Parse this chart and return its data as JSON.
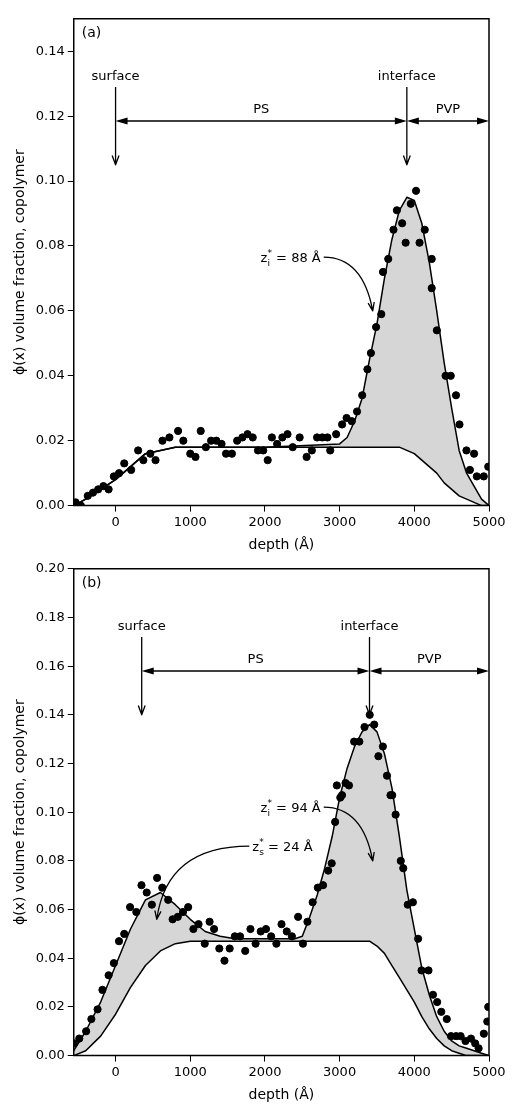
{
  "chart_data": [
    {
      "type": "scatter",
      "xlabel": "depth (Å)",
      "ylabel": "ϕ(x) volume fraction, copolymer",
      "xlim": [
        -560,
        5000
      ],
      "ylim": [
        0,
        0.15
      ],
      "xticks": [
        0,
        1000,
        2000,
        3000,
        4000,
        5000
      ],
      "yticks": [
        {
          "value": 0,
          "label": "0.00"
        },
        {
          "value": 0.02,
          "label": "0.02"
        },
        {
          "value": 0.04,
          "label": "0.04"
        },
        {
          "value": 0.06,
          "label": "0.06"
        },
        {
          "value": 0.08,
          "label": "0.08"
        },
        {
          "value": 0.1,
          "label": "0.10"
        },
        {
          "value": 0.12,
          "label": "0.12"
        },
        {
          "value": 0.14,
          "label": "0.14"
        }
      ],
      "annotations": [
        "(a)",
        "PS",
        "PVP",
        "z$_{i}$$^{*}$ = 88 Å"
      ],
      "ref_lines": [
        {
          "axis": "x",
          "value": 0,
          "label": "surface"
        },
        {
          "axis": "x",
          "value": 3900,
          "label": "interface"
        }
      ],
      "series": [
        {
          "marker": "circle",
          "color": "#000000",
          "x": [
            -535,
            -465,
            -372,
            -302,
            -233,
            -163,
            -93,
            -23,
            47,
            116,
            209,
            302,
            372,
            465,
            535,
            628,
            721,
            837,
            907,
            1000,
            1070,
            1140,
            1209,
            1279,
            1349,
            1419,
            1479,
            1558,
            1628,
            1698,
            1767,
            1837,
            1907,
            1977,
            2037,
            2093,
            2163,
            2233,
            2302,
            2372,
            2465,
            2558,
            2628,
            2698,
            2767,
            2837,
            2874,
            2953,
            3033,
            3093,
            3163,
            3233,
            3302,
            3372,
            3419,
            3488,
            3558,
            3581,
            3651,
            3721,
            3767,
            3837,
            3884,
            3953,
            4023,
            4070,
            4140,
            4233,
            4233,
            4302,
            4419,
            4488,
            4558,
            4605,
            4698,
            4744,
            4800,
            4837,
            4930,
            4990
          ],
          "values": [
            0.001,
            0.0,
            0.003,
            0.004,
            0.005,
            0.006,
            0.005,
            0.009,
            0.01,
            0.013,
            0.011,
            0.017,
            0.014,
            0.016,
            0.014,
            0.02,
            0.021,
            0.023,
            0.02,
            0.016,
            0.015,
            0.023,
            0.018,
            0.02,
            0.02,
            0.019,
            0.016,
            0.016,
            0.02,
            0.021,
            0.022,
            0.021,
            0.017,
            0.017,
            0.014,
            0.021,
            0.019,
            0.021,
            0.022,
            0.018,
            0.021,
            0.015,
            0.017,
            0.021,
            0.021,
            0.021,
            0.017,
            0.022,
            0.025,
            0.027,
            0.026,
            0.029,
            0.034,
            0.042,
            0.047,
            0.055,
            0.059,
            0.072,
            0.076,
            0.085,
            0.091,
            0.087,
            0.081,
            0.093,
            0.097,
            0.081,
            0.085,
            0.076,
            0.067,
            0.054,
            0.04,
            0.04,
            0.034,
            0.025,
            0.017,
            0.011,
            0.016,
            0.009,
            0.009,
            0.012
          ]
        },
        {
          "type": "line",
          "color": "#000000",
          "x": [
            -560,
            -400,
            -200,
            0,
            200,
            400,
            600,
            800,
            1000,
            2000,
            3000,
            3100,
            3200,
            3300,
            3400,
            3500,
            3600,
            3700,
            3800,
            3900,
            4000,
            4100,
            4200,
            4300,
            4400,
            4500,
            4600,
            4700,
            4800,
            4900,
            5000
          ],
          "values": [
            0.0,
            0.002,
            0.005,
            0.008,
            0.012,
            0.016,
            0.017,
            0.018,
            0.018,
            0.018,
            0.019,
            0.021,
            0.026,
            0.033,
            0.045,
            0.056,
            0.07,
            0.082,
            0.091,
            0.095,
            0.094,
            0.087,
            0.075,
            0.06,
            0.044,
            0.03,
            0.017,
            0.01,
            0.006,
            0.002,
            0.0
          ],
          "upper": [
            0.0,
            0.002,
            0.005,
            0.008,
            0.012,
            0.016,
            0.017,
            0.018,
            0.018,
            0.018,
            0.019,
            0.021,
            0.026,
            0.033,
            0.045,
            0.056,
            0.07,
            0.082,
            0.091,
            0.095,
            0.094,
            0.087,
            0.075,
            0.06,
            0.044,
            0.03,
            0.017,
            0.01,
            0.006,
            0.002,
            0.0
          ],
          "lower": [
            0.0,
            0.002,
            0.005,
            0.008,
            0.012,
            0.016,
            0.017,
            0.018,
            0.018,
            0.018,
            0.018,
            0.018,
            0.018,
            0.018,
            0.018,
            0.018,
            0.018,
            0.018,
            0.018,
            0.017,
            0.016,
            0.014,
            0.012,
            0.01,
            0.007,
            0.005,
            0.003,
            0.002,
            0.001,
            0.0,
            0.0
          ]
        },
        {
          "type": "line",
          "color": "#000000",
          "x": [
            -560,
            -400,
            -200,
            0,
            200,
            400,
            600,
            800,
            1000,
            2000,
            3000,
            3100,
            3200,
            3300,
            3400,
            3500,
            3600,
            3700,
            3800,
            3900,
            4000,
            4100,
            4200,
            4300,
            4400,
            4500,
            4600,
            4700,
            4800,
            4900,
            5000
          ],
          "values": [
            0.0,
            0.002,
            0.005,
            0.008,
            0.012,
            0.016,
            0.017,
            0.018,
            0.018,
            0.018,
            0.018,
            0.018,
            0.018,
            0.018,
            0.018,
            0.018,
            0.018,
            0.018,
            0.018,
            0.017,
            0.016,
            0.014,
            0.012,
            0.01,
            0.007,
            0.005,
            0.003,
            0.002,
            0.001,
            0.0,
            0.0
          ]
        }
      ]
    },
    {
      "type": "scatter",
      "xlabel": "depth (Å)",
      "ylabel": "ϕ(x) volume fraction, copolymer",
      "xlim": [
        -560,
        5000
      ],
      "ylim": [
        0,
        0.2
      ],
      "xticks": [
        0,
        1000,
        2000,
        3000,
        4000,
        5000
      ],
      "yticks": [
        {
          "value": 0,
          "label": "0.00"
        },
        {
          "value": 0.02,
          "label": "0.02"
        },
        {
          "value": 0.04,
          "label": "0.04"
        },
        {
          "value": 0.06,
          "label": "0.06"
        },
        {
          "value": 0.08,
          "label": "0.08"
        },
        {
          "value": 0.1,
          "label": "0.10"
        },
        {
          "value": 0.12,
          "label": "0.12"
        },
        {
          "value": 0.14,
          "label": "0.14"
        },
        {
          "value": 0.16,
          "label": "0.16"
        },
        {
          "value": 0.18,
          "label": "0.18"
        },
        {
          "value": 0.2,
          "label": "0.20"
        }
      ],
      "annotations": [
        "(b)",
        "PS",
        "PVP",
        "z$_{i}$$^{*}$ = 94 Å",
        "z$_{s}$$^{*}$ = 24 Å"
      ],
      "ref_lines": [
        {
          "axis": "x",
          "value": 350,
          "label": "surface"
        },
        {
          "axis": "x",
          "value": 3400,
          "label": "interface"
        }
      ],
      "series": [
        {
          "marker": "circle",
          "color": "#000000",
          "x": [
            -556,
            -486,
            -394,
            -324,
            -241,
            -176,
            -93,
            -23,
            46,
            116,
            194,
            278,
            347,
            417,
            486,
            556,
            625,
            704,
            764,
            833,
            903,
            972,
            1042,
            1111,
            1194,
            1259,
            1319,
            1389,
            1458,
            1528,
            1597,
            1667,
            1736,
            1806,
            1875,
            1944,
            2014,
            2083,
            2153,
            2222,
            2292,
            2361,
            2444,
            2509,
            2569,
            2639,
            2708,
            2778,
            2847,
            2894,
            2940,
            2963,
            3009,
            3032,
            3079,
            3125,
            3194,
            3264,
            3333,
            3403,
            3463,
            3519,
            3579,
            3634,
            3681,
            3704,
            3750,
            3819,
            3852,
            3912,
            3981,
            4051,
            4097,
            4190,
            4250,
            4306,
            4361,
            4435,
            4491,
            4560,
            4620,
            4685,
            4759,
            4815,
            4861,
            4931,
            4977,
            4990
          ],
          "values": [
            0.005,
            0.007,
            0.01,
            0.015,
            0.019,
            0.027,
            0.033,
            0.038,
            0.047,
            0.05,
            0.061,
            0.059,
            0.07,
            0.067,
            0.062,
            0.073,
            0.069,
            0.064,
            0.056,
            0.057,
            0.059,
            0.061,
            0.052,
            0.054,
            0.046,
            0.055,
            0.052,
            0.044,
            0.039,
            0.044,
            0.049,
            0.049,
            0.043,
            0.052,
            0.046,
            0.051,
            0.052,
            0.049,
            0.046,
            0.054,
            0.051,
            0.049,
            0.057,
            0.046,
            0.055,
            0.063,
            0.069,
            0.07,
            0.076,
            0.079,
            0.096,
            0.111,
            0.106,
            0.107,
            0.112,
            0.111,
            0.129,
            0.129,
            0.135,
            0.14,
            0.136,
            0.123,
            0.127,
            0.115,
            0.107,
            0.107,
            0.099,
            0.08,
            0.077,
            0.062,
            0.063,
            0.048,
            0.035,
            0.035,
            0.025,
            0.022,
            0.018,
            0.015,
            0.008,
            0.008,
            0.008,
            0.006,
            0.007,
            0.005,
            0.003,
            0.009,
            0.014,
            0.02
          ]
        },
        {
          "type": "line",
          "color": "#000000",
          "x": [
            -560,
            -400,
            -200,
            0,
            200,
            400,
            600,
            800,
            1000,
            1200,
            1400,
            1600,
            2000,
            2400,
            2500,
            2600,
            2700,
            2800,
            2900,
            3000,
            3100,
            3200,
            3300,
            3400,
            3500,
            3600,
            3700,
            3800,
            3900,
            4000,
            4100,
            4200,
            4300,
            4400,
            4500,
            4600,
            4700,
            4800,
            4900,
            5000
          ],
          "values": [
            0.002,
            0.01,
            0.022,
            0.037,
            0.052,
            0.064,
            0.067,
            0.062,
            0.056,
            0.051,
            0.049,
            0.048,
            0.048,
            0.048,
            0.049,
            0.057,
            0.066,
            0.077,
            0.09,
            0.106,
            0.118,
            0.127,
            0.133,
            0.136,
            0.133,
            0.124,
            0.11,
            0.09,
            0.068,
            0.052,
            0.036,
            0.025,
            0.016,
            0.01,
            0.006,
            0.004,
            0.003,
            0.002,
            0.001,
            0.0
          ],
          "upper": [
            0.002,
            0.01,
            0.022,
            0.037,
            0.052,
            0.064,
            0.067,
            0.062,
            0.056,
            0.051,
            0.049,
            0.048,
            0.048,
            0.048,
            0.049,
            0.057,
            0.066,
            0.077,
            0.09,
            0.106,
            0.118,
            0.127,
            0.133,
            0.136,
            0.133,
            0.124,
            0.11,
            0.09,
            0.068,
            0.052,
            0.036,
            0.025,
            0.016,
            0.01,
            0.006,
            0.004,
            0.003,
            0.002,
            0.001,
            0.0
          ],
          "lower": [
            0.0,
            0.002,
            0.008,
            0.017,
            0.028,
            0.037,
            0.043,
            0.046,
            0.047,
            0.047,
            0.047,
            0.047,
            0.047,
            0.047,
            0.047,
            0.047,
            0.047,
            0.047,
            0.047,
            0.047,
            0.047,
            0.047,
            0.047,
            0.047,
            0.045,
            0.042,
            0.037,
            0.032,
            0.027,
            0.022,
            0.016,
            0.011,
            0.007,
            0.004,
            0.002,
            0.001,
            0.0,
            0.0,
            0.0,
            0.0
          ]
        },
        {
          "type": "line",
          "color": "#000000",
          "x": [
            -560,
            -400,
            -200,
            0,
            200,
            400,
            600,
            800,
            1000,
            1200,
            1400,
            1600,
            2000,
            2400,
            2500,
            2600,
            2700,
            2800,
            2900,
            3000,
            3100,
            3200,
            3300,
            3400,
            3500,
            3600,
            3700,
            3800,
            3900,
            4000,
            4100,
            4200,
            4300,
            4400,
            4500,
            4600,
            4700,
            4800,
            4900,
            5000
          ],
          "values": [
            0.0,
            0.002,
            0.008,
            0.017,
            0.028,
            0.037,
            0.043,
            0.046,
            0.047,
            0.047,
            0.047,
            0.047,
            0.047,
            0.047,
            0.047,
            0.047,
            0.047,
            0.047,
            0.047,
            0.047,
            0.047,
            0.047,
            0.047,
            0.047,
            0.045,
            0.042,
            0.037,
            0.032,
            0.027,
            0.022,
            0.016,
            0.011,
            0.007,
            0.004,
            0.002,
            0.001,
            0.0,
            0.0,
            0.0,
            0.0
          ]
        }
      ]
    }
  ]
}
